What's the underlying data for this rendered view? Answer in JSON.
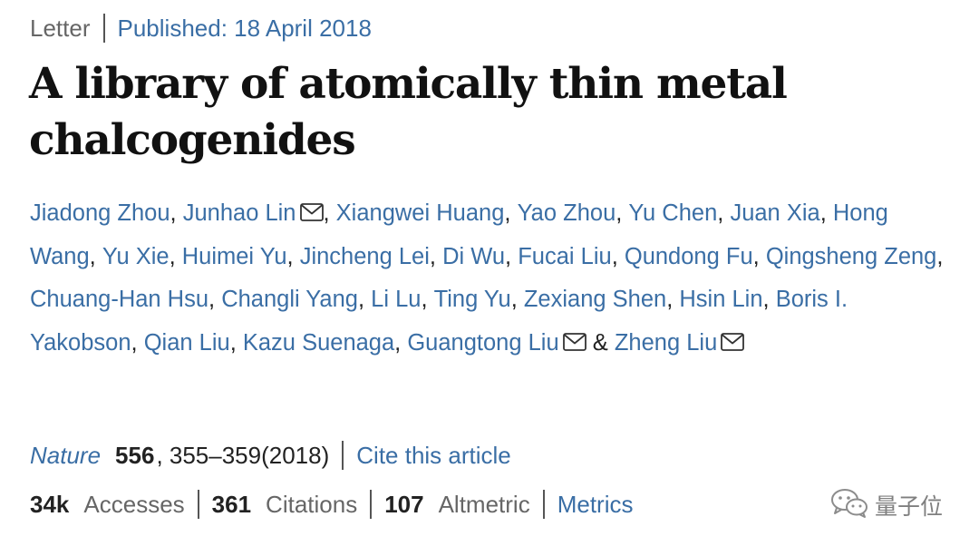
{
  "header": {
    "article_type": "Letter",
    "published": "Published: 18 April 2018"
  },
  "title": "A library of atomically thin metal chalcogenides",
  "authors": [
    {
      "name": "Jiadong Zhou",
      "separator": ", ",
      "mail": false
    },
    {
      "name": "Junhao Lin",
      "separator": ", ",
      "mail": true
    },
    {
      "name": "Xiangwei Huang",
      "separator": ", ",
      "mail": false
    },
    {
      "name": "Yao Zhou",
      "separator": ", ",
      "mail": false
    },
    {
      "name": "Yu Chen",
      "separator": ", ",
      "mail": false
    },
    {
      "name": "Juan Xia",
      "separator": ", ",
      "mail": false
    },
    {
      "name": "Hong Wang",
      "separator": ", ",
      "mail": false
    },
    {
      "name": "Yu Xie",
      "separator": ", ",
      "mail": false
    },
    {
      "name": "Huimei Yu",
      "separator": ", ",
      "mail": false
    },
    {
      "name": "Jincheng Lei",
      "separator": ", ",
      "mail": false
    },
    {
      "name": "Di Wu",
      "separator": ", ",
      "mail": false
    },
    {
      "name": "Fucai Liu",
      "separator": ", ",
      "mail": false
    },
    {
      "name": "Qundong Fu",
      "separator": ", ",
      "mail": false
    },
    {
      "name": "Qingsheng Zeng",
      "separator": ", ",
      "mail": false
    },
    {
      "name": "Chuang-Han Hsu",
      "separator": ", ",
      "mail": false
    },
    {
      "name": "Changli Yang",
      "separator": ", ",
      "mail": false
    },
    {
      "name": "Li Lu",
      "separator": ", ",
      "mail": false
    },
    {
      "name": "Ting Yu",
      "separator": ", ",
      "mail": false
    },
    {
      "name": "Zexiang Shen",
      "separator": ", ",
      "mail": false
    },
    {
      "name": "Hsin Lin",
      "separator": ", ",
      "mail": false
    },
    {
      "name": "Boris I. Yakobson",
      "separator": ", ",
      "mail": false
    },
    {
      "name": "Qian Liu",
      "separator": ", ",
      "mail": false
    },
    {
      "name": "Kazu Suenaga",
      "separator": ", ",
      "mail": false
    },
    {
      "name": "Guangtong Liu",
      "separator": " & ",
      "mail": true
    },
    {
      "name": "Zheng Liu",
      "separator": "",
      "mail": true
    }
  ],
  "citation": {
    "journal": "Nature",
    "volume": "556",
    "pages": ", 355–359(2018)",
    "cite_link": "Cite this article"
  },
  "metrics": {
    "accesses_value": "34k",
    "accesses_label": "Accesses",
    "citations_value": "361",
    "citations_label": "Citations",
    "altmetric_value": "107",
    "altmetric_label": "Altmetric",
    "metrics_link": "Metrics"
  },
  "watermark": {
    "text": "量子位",
    "icon": "wechat-icon"
  },
  "colors": {
    "link": "#3a6ea5",
    "text": "#222222",
    "muted": "#666666"
  }
}
